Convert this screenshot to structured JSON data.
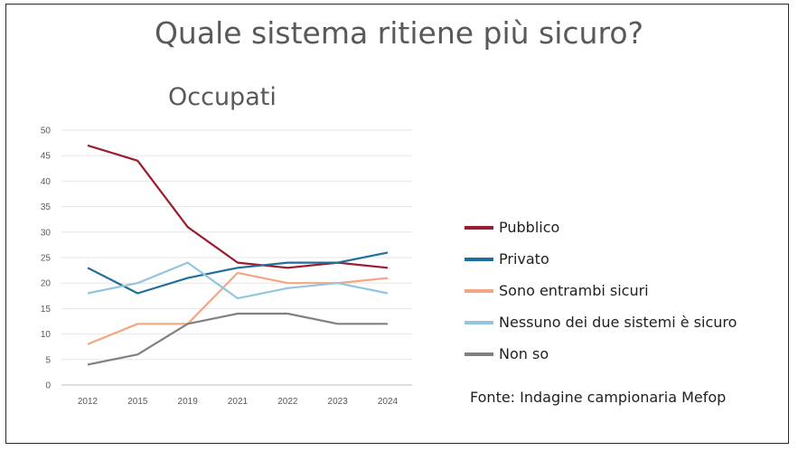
{
  "title": "Quale sistema ritiene più sicuro?",
  "subtitle": "Occupati",
  "source": "Fonte: Indagine campionaria Mefop",
  "chart_data": {
    "type": "line",
    "categories": [
      "2012",
      "2015",
      "2019",
      "2021",
      "2022",
      "2023",
      "2024"
    ],
    "ylim": [
      0,
      50
    ],
    "yticks": [
      0,
      5,
      10,
      15,
      20,
      25,
      30,
      35,
      40,
      45,
      50
    ],
    "grid": true,
    "legend_position": "right",
    "series": [
      {
        "name": "Pubblico",
        "color": "#9b1c2e",
        "values": [
          47,
          44,
          31,
          24,
          23,
          24,
          23
        ]
      },
      {
        "name": "Privato",
        "color": "#1f6e9c",
        "values": [
          23,
          18,
          21,
          23,
          24,
          24,
          26
        ]
      },
      {
        "name": "Sono entrambi sicuri",
        "color": "#f4a582",
        "values": [
          8,
          12,
          12,
          22,
          20,
          20,
          21
        ]
      },
      {
        "name": "Nessuno dei due sistemi è sicuro",
        "color": "#92c5de",
        "values": [
          18,
          20,
          24,
          17,
          19,
          20,
          18
        ]
      },
      {
        "name": "Non so",
        "color": "#808080",
        "values": [
          4,
          6,
          12,
          14,
          14,
          12,
          12
        ]
      }
    ]
  }
}
